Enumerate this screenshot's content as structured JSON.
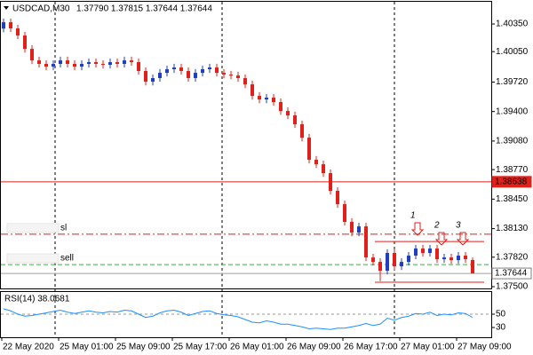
{
  "chart_data": {
    "type": "candlestick",
    "title": "USDCAD,M30",
    "quote": "1.37790 1.37815 1.37644 1.37644",
    "categories": [
      "22 May 2020",
      null,
      null,
      null,
      null,
      null,
      null,
      null,
      "25 May 01:00",
      null,
      null,
      null,
      null,
      null,
      null,
      null,
      "25 May 09:00",
      null,
      null,
      null,
      null,
      null,
      null,
      null,
      "25 May 17:00",
      null,
      null,
      null,
      null,
      null,
      null,
      null,
      "26 May 01:00",
      null,
      null,
      null,
      null,
      null,
      null,
      null,
      "26 May 09:00",
      null,
      null,
      null,
      null,
      null,
      null,
      null,
      "26 May 17:00",
      null,
      null,
      null,
      null,
      null,
      null,
      null,
      "27 May 01:00",
      null,
      null,
      null,
      null,
      null,
      null,
      null,
      "27 May 09:00",
      null,
      null
    ],
    "open": [
      1.403,
      1.40369,
      1.40302,
      1.40225,
      1.4008,
      1.39955,
      1.39917,
      1.39888,
      1.39917,
      1.39955,
      1.39917,
      1.39888,
      1.39917,
      1.39936,
      1.39917,
      1.39907,
      1.39936,
      1.39917,
      1.39955,
      1.39936,
      1.3984,
      1.39724,
      1.39763,
      1.3982,
      1.39859,
      1.39878,
      1.3984,
      1.39763,
      1.3982,
      1.39859,
      1.39878,
      1.3982,
      1.39801,
      1.39791,
      1.39763,
      1.39695,
      1.3957,
      1.39531,
      1.39551,
      1.39503,
      1.39406,
      1.39358,
      1.39262,
      1.39117,
      1.38877,
      1.38828,
      1.38732,
      1.3854,
      1.38395,
      1.38203,
      1.38087,
      1.38154,
      1.37817,
      1.37769,
      1.37673,
      1.37866,
      1.37721,
      1.37769,
      1.37837,
      1.37914,
      1.37866,
      1.37914,
      1.37798,
      1.37817,
      1.37788,
      1.37837,
      1.3779
    ],
    "high": [
      1.40409,
      1.40409,
      1.40342,
      1.40265,
      1.4012,
      1.39995,
      1.39957,
      1.39957,
      1.39995,
      1.39995,
      1.39957,
      1.39957,
      1.39976,
      1.39976,
      1.39957,
      1.39976,
      1.39976,
      1.39995,
      1.39995,
      1.39976,
      1.3988,
      1.39803,
      1.3986,
      1.39899,
      1.39918,
      1.39918,
      1.3988,
      1.3986,
      1.39899,
      1.39918,
      1.39918,
      1.3986,
      1.39841,
      1.39831,
      1.39803,
      1.39735,
      1.3961,
      1.39591,
      1.39591,
      1.39543,
      1.39446,
      1.39398,
      1.39302,
      1.39157,
      1.38917,
      1.38868,
      1.38772,
      1.3858,
      1.38435,
      1.38243,
      1.38194,
      1.38194,
      1.37857,
      1.37809,
      1.37906,
      1.37906,
      1.37809,
      1.37877,
      1.37954,
      1.37954,
      1.37954,
      1.37954,
      1.37857,
      1.37857,
      1.37877,
      1.37877,
      1.37815
    ],
    "low": [
      1.4026,
      1.40262,
      1.40185,
      1.4004,
      1.39915,
      1.39877,
      1.39848,
      1.39848,
      1.39877,
      1.39877,
      1.39848,
      1.39848,
      1.39877,
      1.39877,
      1.39867,
      1.39867,
      1.39877,
      1.39877,
      1.39896,
      1.398,
      1.39684,
      1.39684,
      1.39723,
      1.3978,
      1.39819,
      1.398,
      1.39723,
      1.39723,
      1.3978,
      1.39819,
      1.3978,
      1.39761,
      1.39751,
      1.39723,
      1.39655,
      1.3953,
      1.39491,
      1.39491,
      1.39463,
      1.39366,
      1.39318,
      1.39222,
      1.39077,
      1.38837,
      1.38788,
      1.38692,
      1.385,
      1.38355,
      1.38163,
      1.38047,
      1.38047,
      1.37777,
      1.37729,
      1.3756,
      1.37633,
      1.37681,
      1.37681,
      1.37729,
      1.37797,
      1.37826,
      1.37826,
      1.37758,
      1.37758,
      1.37748,
      1.37748,
      1.37758,
      1.37644
    ],
    "close": [
      1.40369,
      1.40302,
      1.40225,
      1.4008,
      1.39955,
      1.39917,
      1.39888,
      1.39917,
      1.39955,
      1.39917,
      1.39888,
      1.39917,
      1.39936,
      1.39917,
      1.39907,
      1.39936,
      1.39917,
      1.39955,
      1.39936,
      1.3984,
      1.39724,
      1.39763,
      1.3982,
      1.39859,
      1.39878,
      1.3984,
      1.39763,
      1.3982,
      1.39859,
      1.39878,
      1.3982,
      1.39801,
      1.39791,
      1.39763,
      1.39695,
      1.3957,
      1.39531,
      1.39551,
      1.39503,
      1.39406,
      1.39358,
      1.39262,
      1.39117,
      1.38877,
      1.38828,
      1.38732,
      1.3854,
      1.38395,
      1.38203,
      1.38087,
      1.38154,
      1.37817,
      1.37769,
      1.37673,
      1.37866,
      1.37721,
      1.37769,
      1.37837,
      1.37914,
      1.37866,
      1.37914,
      1.37798,
      1.37817,
      1.37788,
      1.37837,
      1.37798,
      1.37644
    ],
    "up_color": "#1f3fbf",
    "down_color": "#e0201b",
    "ylim": [
      1.37481,
      1.40591
    ],
    "yticks": [
      {
        "value": 1.4035,
        "label": "1.40350"
      },
      {
        "value": 1.4005,
        "label": "1.40050"
      },
      {
        "value": 1.3972,
        "label": "1.39720"
      },
      {
        "value": 1.394,
        "label": "1.39400"
      },
      {
        "value": 1.3908,
        "label": "1.39080"
      },
      {
        "value": 1.3877,
        "label": "1.38770"
      },
      {
        "value": 1.3845,
        "label": "1.38450"
      },
      {
        "value": 1.3813,
        "label": "1.38130"
      },
      {
        "value": 1.3782,
        "label": "1.37820"
      },
      {
        "value": 1.375,
        "label": "1.37500"
      }
    ],
    "levels": [
      {
        "value": 1.38638,
        "label": "1.38638",
        "color": "#e0201b",
        "style": "solid",
        "tag": "axis"
      },
      {
        "value": 1.3807,
        "label": "sl",
        "color": "#e0201b",
        "style": "dashdot",
        "tag": "left"
      },
      {
        "value": 1.3774,
        "label": "sell",
        "color": "#3cb43c",
        "style": "dashed",
        "tag": "left"
      },
      {
        "value": 1.37644,
        "label": "1.37644",
        "color": "#a0a0a0",
        "style": "solid",
        "tag": "axis"
      }
    ],
    "trendlines": [
      {
        "value": 1.3799,
        "color": "#e0201b"
      },
      {
        "value": 1.37548,
        "color": "#e0201b"
      }
    ],
    "annotations": [
      "1",
      "2",
      "3"
    ],
    "rsi": {
      "title": "RSI(14) 38.0681",
      "color": "#1e90ff",
      "ylim": [
        18,
        82
      ],
      "yticks": [
        50,
        30
      ],
      "level": 50,
      "values": [
        58,
        55,
        50,
        47,
        48,
        50,
        52,
        54,
        56,
        53,
        51,
        53,
        55,
        53,
        52,
        54,
        53,
        56,
        55,
        50,
        45,
        47,
        52,
        55,
        56,
        53,
        48,
        51,
        54,
        55,
        51,
        49,
        48,
        46,
        42,
        38,
        37,
        40,
        38,
        35,
        35,
        33,
        31,
        28,
        29,
        28,
        27,
        29,
        29,
        31,
        33,
        36,
        33,
        35,
        44,
        41,
        45,
        47,
        51,
        50,
        53,
        48,
        50,
        49,
        52,
        51,
        45
      ]
    }
  }
}
